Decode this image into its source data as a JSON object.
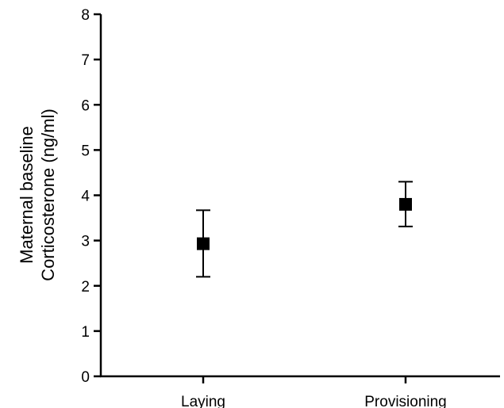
{
  "chart_data": {
    "type": "scatter",
    "title": "",
    "xlabel": "",
    "ylabel_lines": [
      "Maternal baseline",
      "Corticosterone (ng/ml)"
    ],
    "categories": [
      "Laying",
      "Provisioning"
    ],
    "values": [
      2.93,
      3.8
    ],
    "error_upper": [
      3.67,
      4.3
    ],
    "error_lower": [
      2.2,
      3.31
    ],
    "ylim": [
      0,
      8
    ],
    "yticks": [
      0,
      1,
      2,
      3,
      4,
      5,
      6,
      7,
      8
    ],
    "grid": false,
    "marker": "square",
    "colors": {
      "marker": "#000000",
      "axis": "#000000"
    }
  }
}
